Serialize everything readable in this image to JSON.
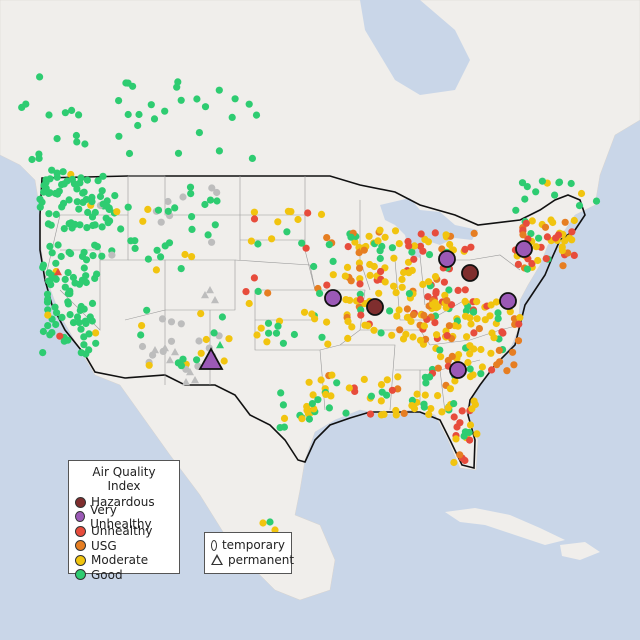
{
  "legend_aqi": {
    "title": "Air Quality Index",
    "items": [
      {
        "label": "Hazardous",
        "color": "#7f2e2e"
      },
      {
        "label": "Very Unhealthy",
        "color": "#9b59b6"
      },
      {
        "label": "Unhealthy",
        "color": "#e74c3c"
      },
      {
        "label": "USG",
        "color": "#e67e22"
      },
      {
        "label": "Moderate",
        "color": "#f1c40f"
      },
      {
        "label": "Good",
        "color": "#2ecc71"
      }
    ]
  },
  "legend_type": {
    "items": [
      {
        "label": "temporary",
        "shape": "circle"
      },
      {
        "label": "permanent",
        "shape": "triangle"
      }
    ]
  },
  "colors": {
    "water": "#c9d6e8",
    "land": "#f0eeeb",
    "grey": "#bdbdbd"
  }
}
